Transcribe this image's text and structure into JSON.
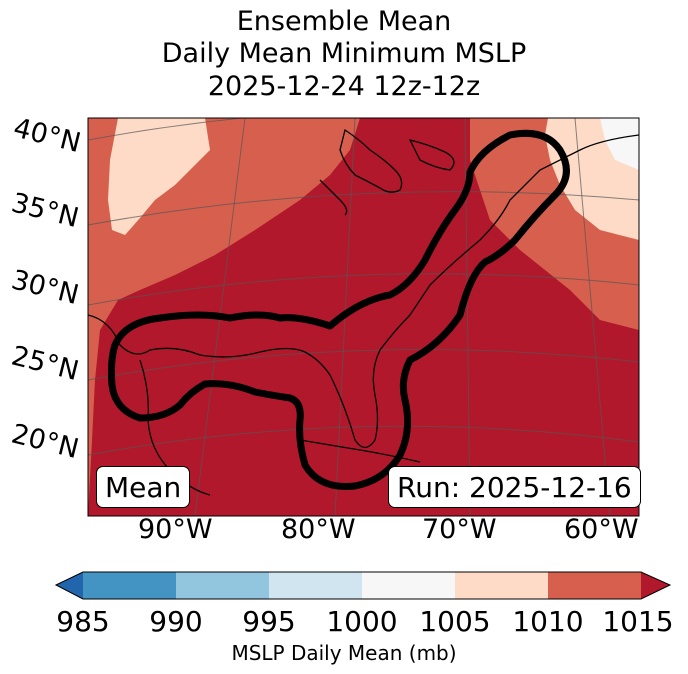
{
  "title": {
    "line1": "Ensemble Mean",
    "line2": "Daily Mean Minimum MSLP",
    "line3": "2025-12-24 12z-12z"
  },
  "map": {
    "lat_labels": [
      "40°N",
      "35°N",
      "30°N",
      "25°N",
      "20°N"
    ],
    "lon_labels": [
      "90°W",
      "80°W",
      "70°W",
      "60°W"
    ],
    "mean_box": "Mean",
    "run_box": "Run: 2025-12-16",
    "colors": {
      "lt1010": "#fddbc7",
      "lt1015": "#d6604d",
      "ge1015": "#b2182b",
      "lt1005": "#f7f7f7",
      "contour": "#000000"
    }
  },
  "colorbar": {
    "ticks": [
      "985",
      "990",
      "995",
      "1000",
      "1005",
      "1010",
      "1015"
    ],
    "colors": [
      "#2166ac",
      "#4393c3",
      "#92c5de",
      "#d1e5f0",
      "#f7f7f7",
      "#fddbc7",
      "#d6604d",
      "#b2182b"
    ],
    "label": "MSLP Daily Mean (mb)"
  }
}
